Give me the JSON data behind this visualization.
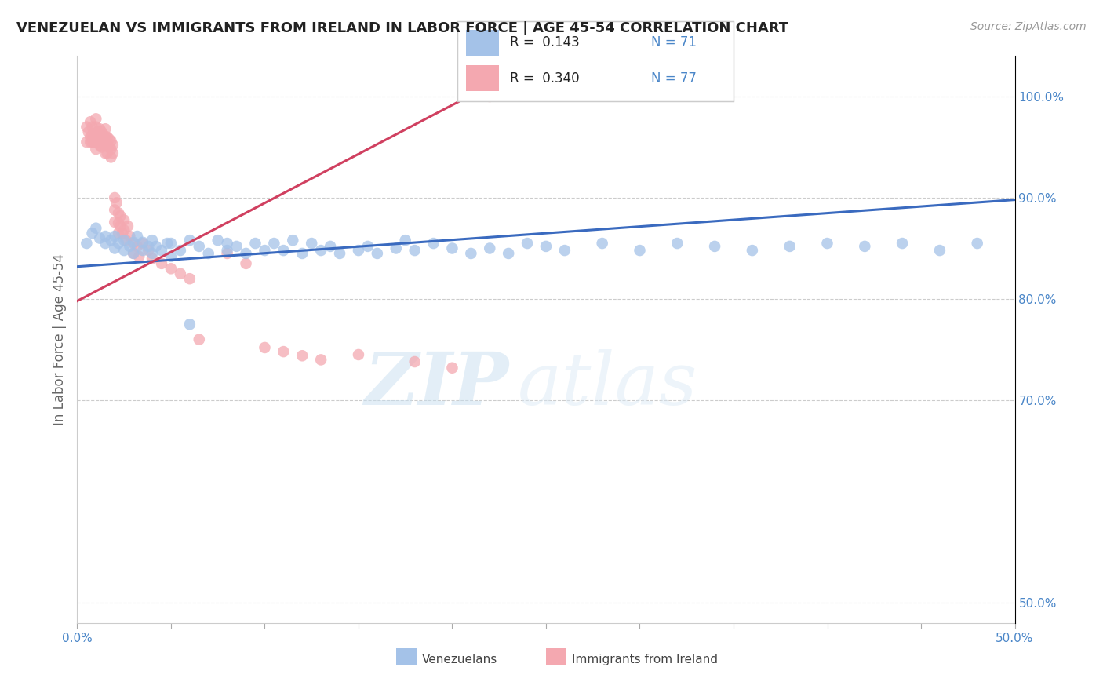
{
  "title": "VENEZUELAN VS IMMIGRANTS FROM IRELAND IN LABOR FORCE | AGE 45-54 CORRELATION CHART",
  "source": "Source: ZipAtlas.com",
  "ylabel": "In Labor Force | Age 45-54",
  "right_yticks": [
    0.5,
    0.7,
    0.8,
    0.9,
    1.0
  ],
  "right_yticklabels": [
    "50.0%",
    "70.0%",
    "80.0%",
    "90.0%",
    "100.0%"
  ],
  "xmin": 0.0,
  "xmax": 0.5,
  "ymin": 0.48,
  "ymax": 1.04,
  "legend_r1": "R =  0.143",
  "legend_n1": "N = 71",
  "legend_r2": "R =  0.340",
  "legend_n2": "N = 77",
  "blue_color": "#a4c2e8",
  "pink_color": "#f4a8b0",
  "blue_line_color": "#3a6abf",
  "pink_line_color": "#d04060",
  "watermark_zip": "ZIP",
  "watermark_atlas": "atlas",
  "blue_x": [
    0.005,
    0.008,
    0.01,
    0.012,
    0.015,
    0.015,
    0.018,
    0.02,
    0.02,
    0.022,
    0.025,
    0.025,
    0.028,
    0.03,
    0.03,
    0.032,
    0.035,
    0.035,
    0.038,
    0.04,
    0.04,
    0.042,
    0.045,
    0.048,
    0.05,
    0.05,
    0.055,
    0.06,
    0.06,
    0.065,
    0.07,
    0.075,
    0.08,
    0.08,
    0.085,
    0.09,
    0.095,
    0.1,
    0.105,
    0.11,
    0.115,
    0.12,
    0.125,
    0.13,
    0.135,
    0.14,
    0.15,
    0.155,
    0.16,
    0.17,
    0.175,
    0.18,
    0.19,
    0.2,
    0.21,
    0.22,
    0.23,
    0.24,
    0.25,
    0.26,
    0.28,
    0.3,
    0.32,
    0.34,
    0.36,
    0.38,
    0.4,
    0.42,
    0.44,
    0.46,
    0.48
  ],
  "blue_y": [
    0.855,
    0.865,
    0.87,
    0.86,
    0.855,
    0.862,
    0.858,
    0.85,
    0.862,
    0.855,
    0.848,
    0.858,
    0.852,
    0.845,
    0.856,
    0.862,
    0.848,
    0.856,
    0.852,
    0.845,
    0.858,
    0.852,
    0.848,
    0.855,
    0.842,
    0.855,
    0.848,
    0.775,
    0.858,
    0.852,
    0.845,
    0.858,
    0.848,
    0.855,
    0.852,
    0.845,
    0.855,
    0.848,
    0.855,
    0.848,
    0.858,
    0.845,
    0.855,
    0.848,
    0.852,
    0.845,
    0.848,
    0.852,
    0.845,
    0.85,
    0.858,
    0.848,
    0.855,
    0.85,
    0.845,
    0.85,
    0.845,
    0.855,
    0.852,
    0.848,
    0.855,
    0.848,
    0.855,
    0.852,
    0.848,
    0.852,
    0.855,
    0.852,
    0.855,
    0.848,
    0.855
  ],
  "pink_x": [
    0.005,
    0.005,
    0.006,
    0.007,
    0.007,
    0.007,
    0.008,
    0.008,
    0.008,
    0.009,
    0.009,
    0.01,
    0.01,
    0.01,
    0.01,
    0.01,
    0.011,
    0.011,
    0.012,
    0.012,
    0.012,
    0.013,
    0.013,
    0.013,
    0.014,
    0.014,
    0.015,
    0.015,
    0.015,
    0.015,
    0.016,
    0.016,
    0.016,
    0.017,
    0.017,
    0.018,
    0.018,
    0.018,
    0.019,
    0.019,
    0.02,
    0.02,
    0.02,
    0.021,
    0.022,
    0.022,
    0.022,
    0.023,
    0.023,
    0.024,
    0.025,
    0.025,
    0.026,
    0.027,
    0.028,
    0.03,
    0.03,
    0.032,
    0.033,
    0.035,
    0.038,
    0.04,
    0.045,
    0.05,
    0.055,
    0.06,
    0.065,
    0.08,
    0.09,
    0.1,
    0.11,
    0.12,
    0.13,
    0.15,
    0.18,
    0.2,
    0.22
  ],
  "pink_y": [
    0.955,
    0.97,
    0.965,
    0.975,
    0.96,
    0.955,
    0.97,
    0.962,
    0.955,
    0.96,
    0.955,
    0.978,
    0.97,
    0.962,
    0.955,
    0.948,
    0.965,
    0.957,
    0.968,
    0.96,
    0.952,
    0.965,
    0.958,
    0.95,
    0.962,
    0.954,
    0.968,
    0.96,
    0.952,
    0.944,
    0.96,
    0.952,
    0.944,
    0.958,
    0.95,
    0.956,
    0.948,
    0.94,
    0.952,
    0.944,
    0.9,
    0.888,
    0.876,
    0.895,
    0.885,
    0.875,
    0.865,
    0.882,
    0.872,
    0.865,
    0.878,
    0.868,
    0.858,
    0.872,
    0.862,
    0.855,
    0.845,
    0.852,
    0.842,
    0.855,
    0.848,
    0.84,
    0.835,
    0.83,
    0.825,
    0.82,
    0.76,
    0.845,
    0.835,
    0.752,
    0.748,
    0.744,
    0.74,
    0.745,
    0.738,
    0.732,
    1.0
  ],
  "blue_trend_x": [
    0.0,
    0.5
  ],
  "blue_trend_y": [
    0.832,
    0.898
  ],
  "pink_trend_x": [
    0.0,
    0.25
  ],
  "pink_trend_y": [
    0.798,
    1.04
  ]
}
